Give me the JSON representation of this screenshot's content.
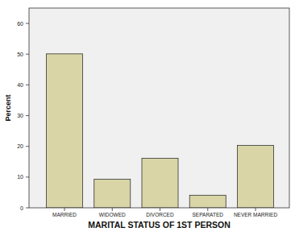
{
  "chart_data": {
    "type": "bar",
    "x_label": "MARITAL STATUS OF 1ST PERSON",
    "y_label": "Percent",
    "categories": [
      "MARRIED",
      "WIDOWED",
      "DIVORCED",
      "SEPARATED",
      "NEVER MARRIED"
    ],
    "values": [
      50.1,
      9.3,
      16.1,
      4.1,
      20.3
    ],
    "color": "#d9d5a7",
    "ylim": [
      0,
      65
    ],
    "yticks": [
      0,
      10,
      20,
      30,
      40,
      50,
      60
    ],
    "grid": false
  }
}
